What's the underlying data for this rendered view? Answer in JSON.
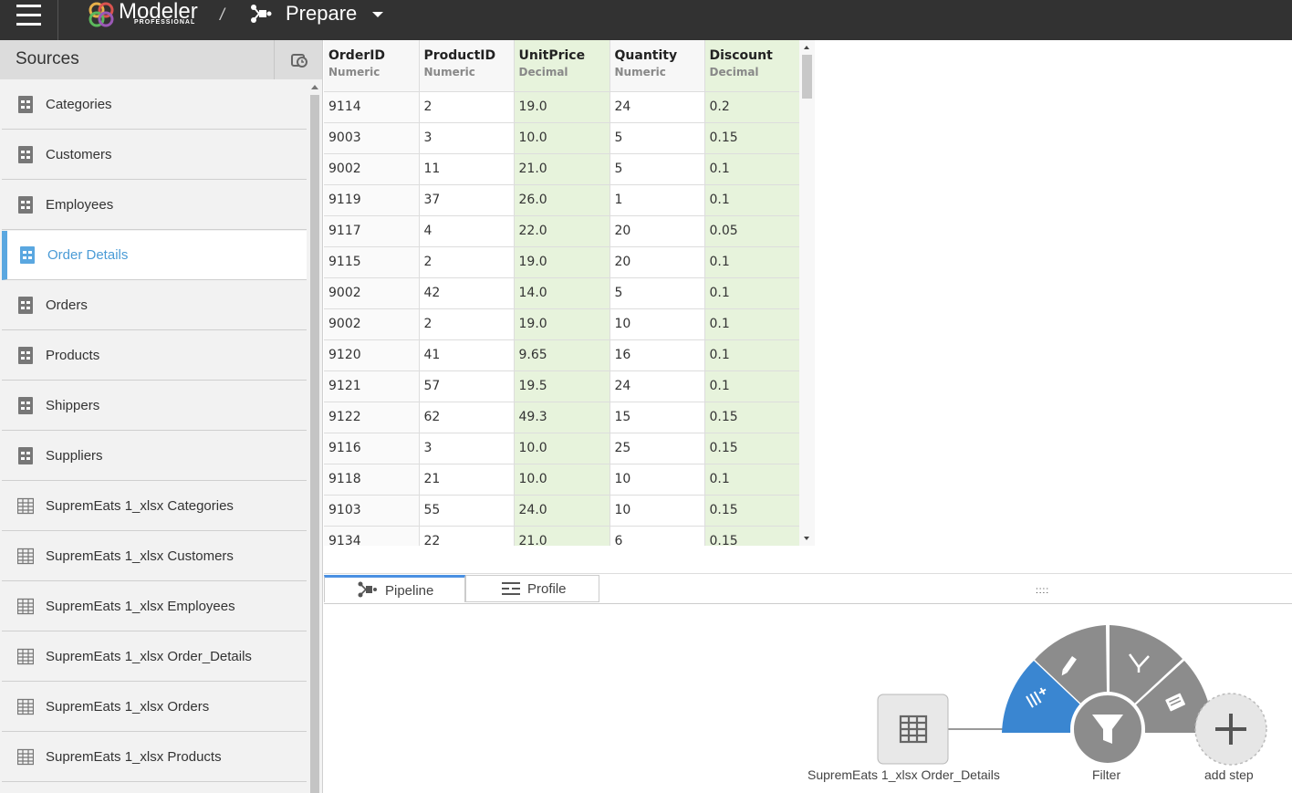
{
  "topbar": {
    "brand": "Modeler",
    "brand_sub": "PROFESSIONAL",
    "separator": "/",
    "current_view": "Prepare"
  },
  "sidebar": {
    "title": "Sources",
    "items": [
      {
        "label": "Categories",
        "icon": "database-table-icon",
        "active": false
      },
      {
        "label": "Customers",
        "icon": "database-table-icon",
        "active": false
      },
      {
        "label": "Employees",
        "icon": "database-table-icon",
        "active": false
      },
      {
        "label": "Order Details",
        "icon": "database-table-icon",
        "active": true
      },
      {
        "label": "Orders",
        "icon": "database-table-icon",
        "active": false
      },
      {
        "label": "Products",
        "icon": "database-table-icon",
        "active": false
      },
      {
        "label": "Shippers",
        "icon": "database-table-icon",
        "active": false
      },
      {
        "label": "Suppliers",
        "icon": "database-table-icon",
        "active": false
      },
      {
        "label": "SupremEats 1_xlsx Categories",
        "icon": "grid-table-icon",
        "active": false
      },
      {
        "label": "SupremEats 1_xlsx Customers",
        "icon": "grid-table-icon",
        "active": false
      },
      {
        "label": "SupremEats 1_xlsx Employees",
        "icon": "grid-table-icon",
        "active": false
      },
      {
        "label": "SupremEats 1_xlsx Order_Details",
        "icon": "grid-table-icon",
        "active": false
      },
      {
        "label": "SupremEats 1_xlsx Orders",
        "icon": "grid-table-icon",
        "active": false
      },
      {
        "label": "SupremEats 1_xlsx Products",
        "icon": "grid-table-icon",
        "active": false
      }
    ]
  },
  "grid": {
    "columns": [
      {
        "name": "OrderID",
        "type": "Numeric"
      },
      {
        "name": "ProductID",
        "type": "Numeric"
      },
      {
        "name": "UnitPrice",
        "type": "Decimal"
      },
      {
        "name": "Quantity",
        "type": "Numeric"
      },
      {
        "name": "Discount",
        "type": "Decimal"
      }
    ],
    "rows": [
      [
        "9114",
        "2",
        "19.0",
        "24",
        "0.2"
      ],
      [
        "9003",
        "3",
        "10.0",
        "5",
        "0.15"
      ],
      [
        "9002",
        "11",
        "21.0",
        "5",
        "0.1"
      ],
      [
        "9119",
        "37",
        "26.0",
        "1",
        "0.1"
      ],
      [
        "9117",
        "4",
        "22.0",
        "20",
        "0.05"
      ],
      [
        "9115",
        "2",
        "19.0",
        "20",
        "0.1"
      ],
      [
        "9002",
        "42",
        "14.0",
        "5",
        "0.1"
      ],
      [
        "9002",
        "2",
        "19.0",
        "10",
        "0.1"
      ],
      [
        "9120",
        "41",
        "9.65",
        "16",
        "0.1"
      ],
      [
        "9121",
        "57",
        "19.5",
        "24",
        "0.1"
      ],
      [
        "9122",
        "62",
        "49.3",
        "15",
        "0.15"
      ],
      [
        "9116",
        "3",
        "10.0",
        "25",
        "0.15"
      ],
      [
        "9118",
        "21",
        "10.0",
        "10",
        "0.1"
      ],
      [
        "9103",
        "55",
        "24.0",
        "10",
        "0.15"
      ],
      [
        "9134",
        "22",
        "21.0",
        "6",
        "0.15"
      ]
    ]
  },
  "bottom": {
    "tabs": [
      {
        "label": "Pipeline",
        "icon": "pipeline-icon",
        "selected": true
      },
      {
        "label": "Profile",
        "icon": "profile-icon",
        "selected": false
      }
    ],
    "drag_handle": "::::",
    "pipeline": {
      "source_node": "SupremEats 1_xlsx Order_Details",
      "filter_node": "Filter",
      "add_step": "add step",
      "radial_menu_icons": [
        "add-column-icon",
        "edit-icon",
        "merge-icon",
        "delete-icon"
      ]
    }
  },
  "colors": {
    "topbar": "#323232",
    "active_item": "#4a9bd6",
    "numeric_col": "#e7f3dc",
    "radial_accent": "#3a86d1"
  }
}
